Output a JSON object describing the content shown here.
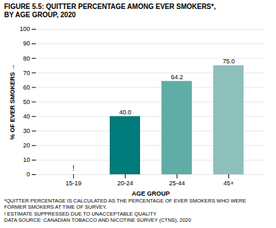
{
  "chart_data": {
    "type": "bar",
    "title": "FIGURE 5.5: QUITTER PERCENTAGE AMONG EVER SMOKERS*,",
    "subtitle": "BY AGE GROUP, 2020",
    "categories": [
      "15-19",
      "20-24",
      "25-44",
      "45+"
    ],
    "values": [
      null,
      40.0,
      64.2,
      75.0
    ],
    "value_labels": [
      null,
      "40.0",
      "64.2",
      "75.0"
    ],
    "colors": [
      null,
      "#007a7a",
      "#5fada6",
      "#8dc0bb"
    ],
    "xlabel": "AGE GROUP",
    "ylabel": "% OF EVER SMOKERS",
    "ylim": [
      0,
      100
    ],
    "yticks": [
      0,
      10,
      20,
      30,
      40,
      50,
      60,
      70,
      80,
      90,
      100
    ],
    "grid": true,
    "data_labels": true,
    "annotations": [
      {
        "text": "!",
        "x": "15-19"
      }
    ],
    "footnotes": [
      "*QUITTER PERCENTAGE IS CALCULATED AS THE PERCENTAGE OF EVER SMOKERS WHO WERE",
      "FORMER SMOKERS AT TIME OF SURVEY.",
      "! ESTIMATE SUPPRESSED DUE TO UNACCEPTABLE QUALITY",
      "DATA SOURCE: CANADIAN TOBACCO AND NICOTINE SURVEY (CTNS), 2020"
    ]
  }
}
